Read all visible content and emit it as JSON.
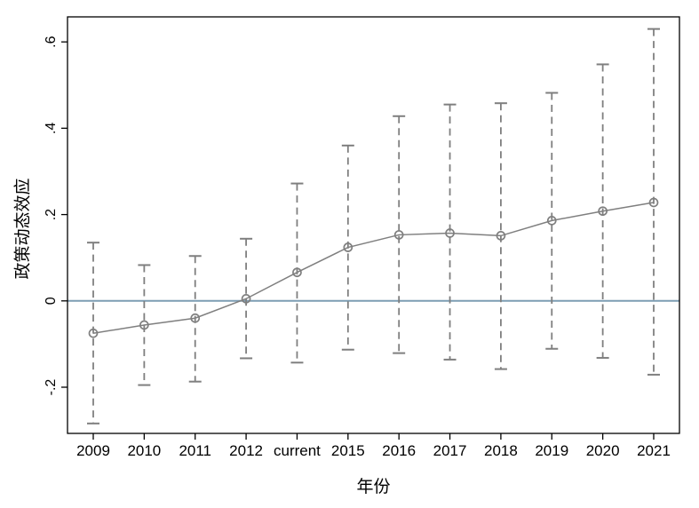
{
  "chart_data": {
    "type": "line",
    "title": "",
    "xlabel": "年份",
    "ylabel": "政策动态效应",
    "x": [
      "2009",
      "2010",
      "2011",
      "2012",
      "current",
      "2015",
      "2016",
      "2017",
      "2018",
      "2019",
      "2020",
      "2021"
    ],
    "series": [
      {
        "name": "estimate",
        "values": [
          -0.075,
          -0.056,
          -0.04,
          0.005,
          0.066,
          0.124,
          0.153,
          0.157,
          0.151,
          0.186,
          0.208,
          0.228
        ]
      },
      {
        "name": "ci_low",
        "values": [
          -0.284,
          -0.195,
          -0.187,
          -0.133,
          -0.143,
          -0.113,
          -0.121,
          -0.136,
          -0.158,
          -0.111,
          -0.132,
          -0.171
        ]
      },
      {
        "name": "ci_high",
        "values": [
          0.135,
          0.083,
          0.104,
          0.144,
          0.272,
          0.36,
          0.428,
          0.455,
          0.458,
          0.482,
          0.548,
          0.63
        ]
      }
    ],
    "yticks": {
      "values": [
        -0.2,
        0,
        0.2,
        0.4,
        0.6
      ],
      "labels": [
        "-.2",
        "0",
        ".2",
        ".4",
        ".6"
      ]
    },
    "ylim": [
      -0.307,
      0.658
    ],
    "zero_line": 0,
    "grid": false,
    "legend": "none",
    "marker": "open-circle",
    "ci_style": "dashed-whiskers-with-caps",
    "colors": {
      "series": "#7f7f7f",
      "zero_line": "#7d9db4",
      "axis": "#000000",
      "tick_text": "#000000",
      "background": "#ffffff"
    }
  }
}
